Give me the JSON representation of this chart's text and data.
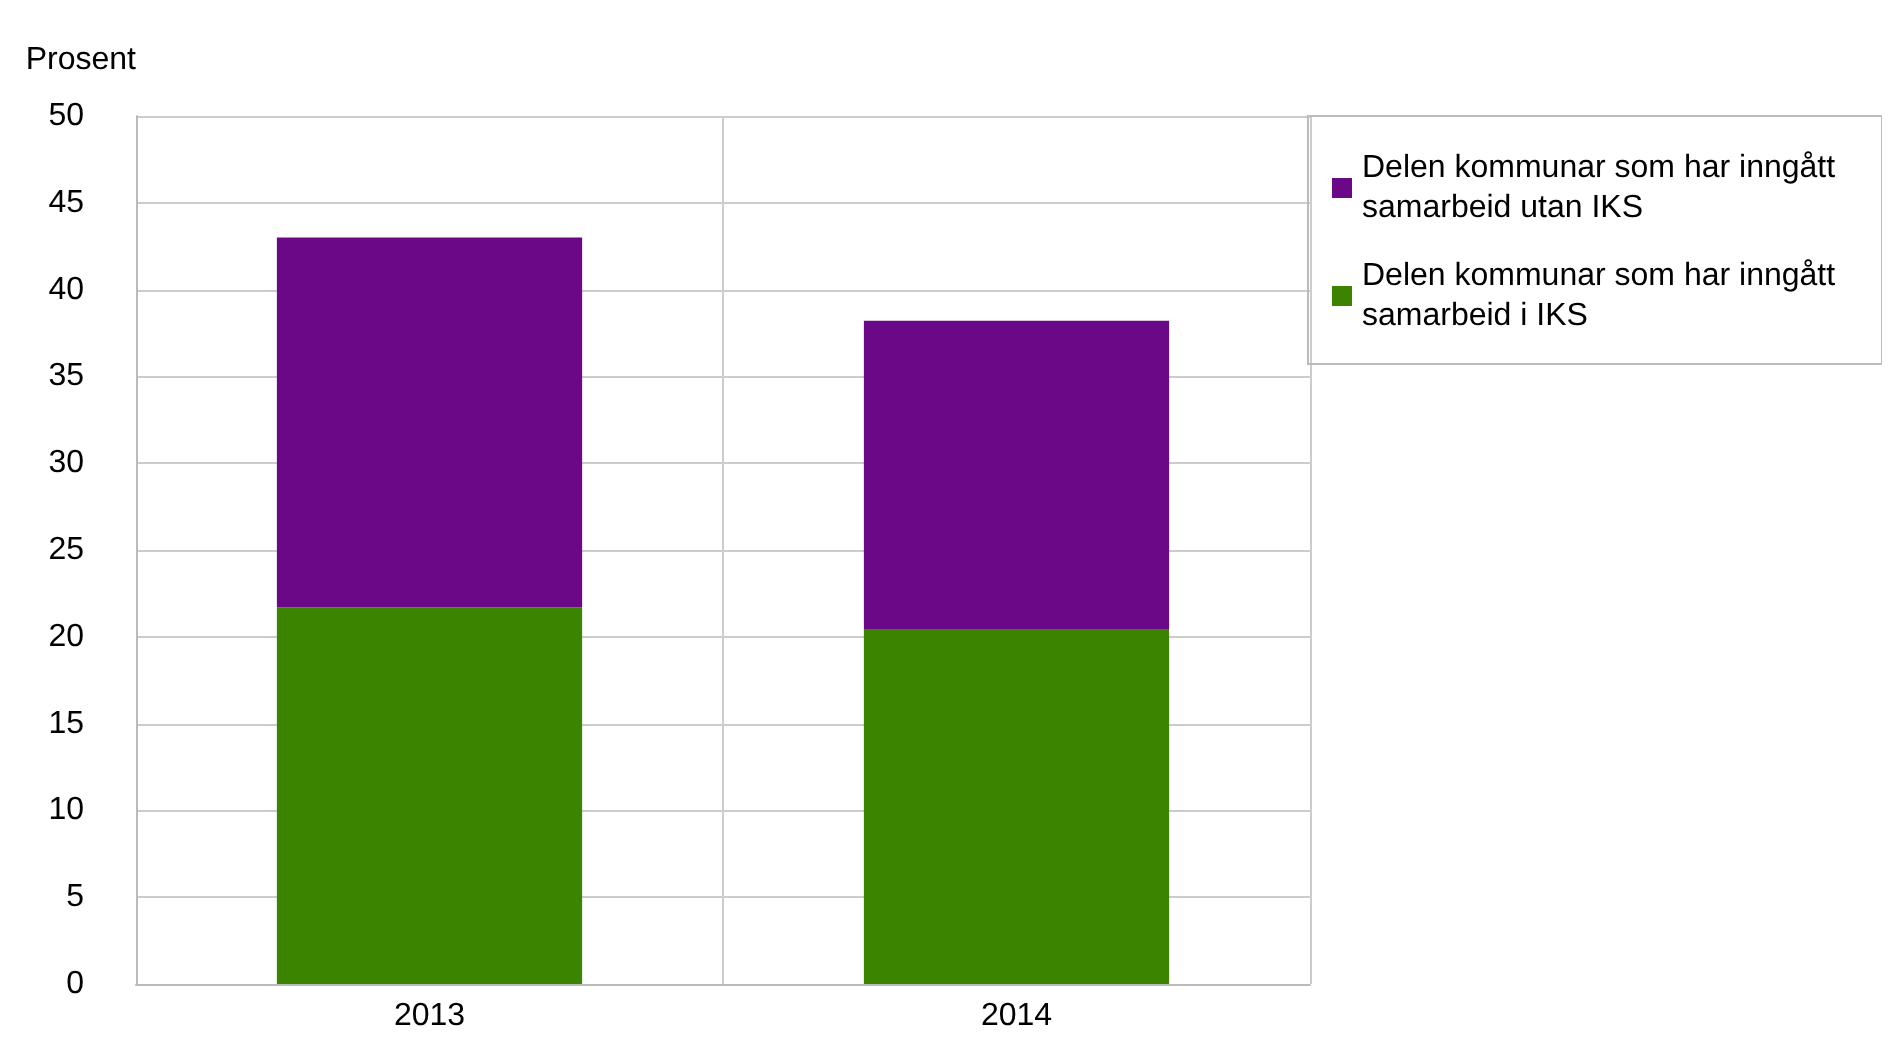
{
  "chart_data": {
    "type": "bar",
    "stacked": true,
    "ylabel": "Prosent",
    "categories": [
      "2013",
      "2014"
    ],
    "series": [
      {
        "name": "Delen kommunar som har inngått samarbeid i IKS",
        "color": "#3a8400",
        "values": [
          21.7,
          20.4
        ]
      },
      {
        "name": "Delen kommunar som har inngått samarbeid utan IKS",
        "color": "#6a0888",
        "values": [
          21.3,
          17.8
        ]
      }
    ],
    "ylim": [
      0,
      50
    ],
    "yticks": [
      0,
      5,
      10,
      15,
      20,
      25,
      30,
      35,
      40,
      45,
      50
    ],
    "grid": true,
    "legend": "top right"
  }
}
